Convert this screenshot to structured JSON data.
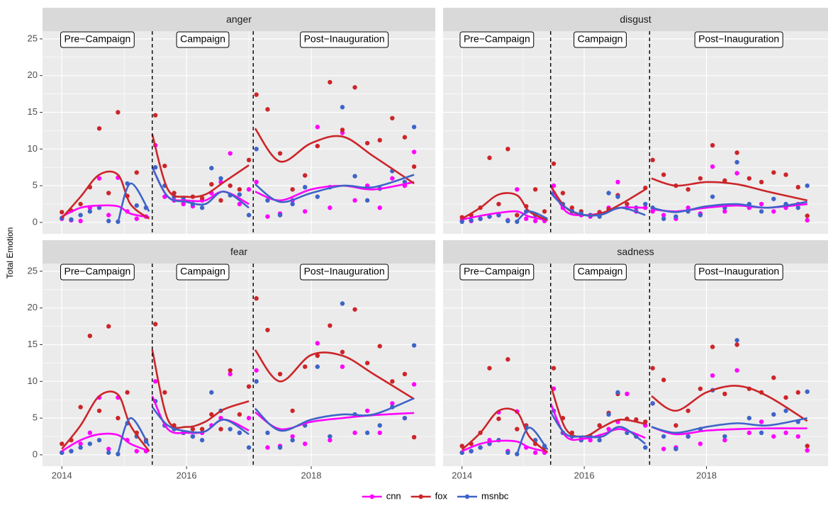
{
  "chart_data": {
    "type": "scatter",
    "y_label": "Total Emotion",
    "xlim": [
      2013.69,
      2019.99
    ],
    "xticks": [
      2014,
      2016,
      2018
    ],
    "ylim": [
      -1.55,
      26.05
    ],
    "yticks": [
      0,
      5,
      10,
      15,
      20,
      25
    ],
    "grid": true,
    "phase_breaks": [
      2015.45,
      2017.07
    ],
    "phases": [
      "Pre−Campaign",
      "Campaign",
      "Post−Inauguration"
    ],
    "series": [
      {
        "name": "cnn",
        "color": "#ff00ff"
      },
      {
        "name": "fox",
        "color": "#cc2529"
      },
      {
        "name": "msnbc",
        "color": "#3d64c8"
      }
    ],
    "x": [
      2014.0,
      2014.15,
      2014.3,
      2014.45,
      2014.6,
      2014.75,
      2014.9,
      2015.05,
      2015.2,
      2015.35,
      2015.5,
      2015.65,
      2015.8,
      2015.95,
      2016.1,
      2016.25,
      2016.4,
      2016.55,
      2016.7,
      2016.85,
      2017.0,
      2017.12,
      2017.3,
      2017.5,
      2017.7,
      2017.9,
      2018.1,
      2018.3,
      2018.5,
      2018.7,
      2018.9,
      2019.1,
      2019.3,
      2019.5,
      2019.65
    ],
    "smooth_x": [
      2014.0,
      2014.3,
      2014.6,
      2014.9,
      2015.1,
      2015.4,
      null,
      2015.45,
      2015.7,
      2016.0,
      2016.3,
      2016.6,
      2017.0,
      null,
      2017.1,
      2017.5,
      2018.0,
      2018.5,
      2019.0,
      2019.65
    ],
    "facets": [
      {
        "title": "anger",
        "series": [
          {
            "values": [
              0.5,
              0.3,
              0.2,
              2,
              6,
              1,
              6.1,
              1.5,
              0.5,
              0.8,
              10.5,
              3.5,
              3,
              2.5,
              2.2,
              3,
              4,
              5.5,
              9.4,
              2.5,
              4.5,
              5.5,
              0.8,
              1.2,
              3,
              1.5,
              13,
              2,
              12.2,
              3,
              5,
              2,
              6,
              5,
              9.6
            ],
            "smooth": [
              0.8,
              2,
              2.3,
              2.2,
              1.2,
              0.7,
              null,
              7.5,
              3.5,
              3,
              3,
              4.2,
              2.5,
              null,
              4.2,
              3,
              4.5,
              5,
              4.5,
              5.5
            ]
          },
          {
            "values": [
              1.4,
              1.6,
              2.5,
              4.8,
              12.8,
              4,
              15,
              3.6,
              6.8,
              2,
              14.6,
              7.7,
              4,
              3,
              3.5,
              3.3,
              5.2,
              3,
              5,
              4.5,
              8.5,
              17.4,
              15.4,
              9.4,
              4.5,
              6.4,
              10.4,
              19.1,
              12.6,
              18.4,
              10.8,
              11.2,
              14.2,
              11.6,
              7.6
            ],
            "smooth": [
              0.6,
              3.5,
              6.5,
              6.5,
              2.5,
              0.5,
              null,
              12,
              4.5,
              3.5,
              3.8,
              5.5,
              7.8,
              null,
              12.8,
              8.3,
              10.8,
              11.7,
              9,
              5.3
            ]
          },
          {
            "values": [
              0.6,
              0.4,
              1,
              1.5,
              2,
              0.2,
              0.1,
              5.3,
              2.3,
              2,
              7.5,
              5,
              3.5,
              3.3,
              2.5,
              2,
              7.4,
              6,
              3.7,
              3.8,
              1,
              10,
              3,
              1,
              2.5,
              4.8,
              3.5,
              4.8,
              15.7,
              6.3,
              3,
              4.6,
              7,
              5.5,
              13
            ],
            "smooth": [
              null,
              null,
              null,
              0,
              5.3,
              1.5,
              null,
              7.5,
              3.5,
              2.8,
              2.5,
              4.2,
              2,
              null,
              5.2,
              2.8,
              4,
              5,
              4.8,
              6.5
            ]
          }
        ]
      },
      {
        "title": "disgust",
        "series": [
          {
            "values": [
              0.3,
              0.2,
              0.5,
              0.8,
              1,
              0.3,
              4.5,
              0.5,
              0.2,
              0.2,
              5,
              2,
              1.5,
              1,
              0.8,
              1.2,
              2,
              5.5,
              2,
              1.5,
              2,
              1.5,
              1,
              0.5,
              2,
              1.2,
              7.6,
              1.5,
              6.7,
              2,
              2.5,
              1.5,
              2,
              2.5,
              0.3
            ],
            "smooth": [
              0.4,
              0.9,
              1.3,
              1.5,
              0.8,
              0.3,
              null,
              5,
              1.5,
              1,
              1.3,
              2,
              2,
              null,
              1.8,
              1.5,
              2,
              2.3,
              2,
              2.5
            ]
          },
          {
            "values": [
              0.7,
              1,
              2,
              8.8,
              2.5,
              10,
              1,
              2.2,
              4.5,
              1.5,
              8,
              4,
              2,
              1.5,
              1,
              1.4,
              1.8,
              3.7,
              2.5,
              2,
              4.7,
              8.5,
              6.5,
              5,
              4.5,
              6,
              10.5,
              5.7,
              9.5,
              6,
              5.5,
              6.8,
              6.5,
              4.8,
              0.9
            ],
            "smooth": [
              0.5,
              2,
              3.8,
              3.7,
              1.5,
              0.3,
              null,
              5,
              2,
              1,
              1.3,
              2.5,
              4.5,
              null,
              6,
              5,
              5.5,
              5.2,
              4.2,
              3
            ]
          },
          {
            "values": [
              0.1,
              0.3,
              0.5,
              0.8,
              1,
              0.2,
              0.1,
              1.5,
              1,
              0.5,
              4,
              2.5,
              1.5,
              1.2,
              1,
              0.8,
              4,
              3.5,
              2,
              2,
              2.5,
              2,
              0.5,
              0.8,
              1.5,
              1,
              3.5,
              2,
              8.2,
              2.5,
              1.5,
              3.2,
              2.5,
              2,
              5
            ],
            "smooth": [
              null,
              null,
              null,
              0.2,
              1.5,
              0.5,
              null,
              4,
              2,
              1,
              1.1,
              2,
              1,
              null,
              2,
              1.4,
              2.2,
              2.5,
              2,
              2.8
            ]
          }
        ]
      },
      {
        "title": "fear",
        "series": [
          {
            "values": [
              0.3,
              0.5,
              1.5,
              3,
              7.8,
              0.8,
              7.8,
              2,
              0.5,
              0.5,
              10,
              4,
              3.5,
              3,
              2.5,
              3,
              4,
              5,
              11,
              3,
              5,
              11.5,
              1,
              1.2,
              2.5,
              1.5,
              15.2,
              2,
              12,
              3,
              6,
              3,
              7,
              5,
              9.6
            ],
            "smooth": [
              0.5,
              2,
              2.8,
              2.7,
              1.5,
              0.5,
              null,
              8,
              3.5,
              3,
              3.2,
              4.8,
              3.3,
              null,
              5.8,
              3.5,
              4.5,
              5,
              5.4,
              5.7
            ]
          },
          {
            "values": [
              1.5,
              2,
              6.5,
              16.2,
              6,
              17.5,
              5,
              8.5,
              3,
              2,
              17.8,
              8.5,
              4,
              3,
              3.5,
              3.5,
              5.5,
              3.5,
              11.5,
              5.5,
              9.3,
              21.3,
              17,
              11,
              6,
              12,
              13.5,
              17.6,
              14,
              19.8,
              12.5,
              14.8,
              10,
              11,
              2.4
            ],
            "smooth": [
              0.8,
              4,
              8,
              8.2,
              4,
              0.5,
              null,
              14.3,
              4.8,
              3.8,
              4.5,
              6.2,
              7.3,
              null,
              14.3,
              10,
              13.6,
              13.5,
              11,
              7.6
            ]
          },
          {
            "values": [
              0.3,
              0.5,
              1,
              1.5,
              2,
              0.3,
              0.1,
              4.3,
              2.5,
              1.8,
              7.3,
              4,
              3.5,
              3,
              2.5,
              2,
              8.5,
              6,
              3.5,
              3,
              1,
              10,
              3,
              1,
              2,
              4,
              12,
              2.5,
              20.6,
              5.5,
              3,
              4,
              6.5,
              5,
              14.9
            ],
            "smooth": [
              null,
              null,
              null,
              0.2,
              5,
              1.2,
              null,
              6.5,
              4,
              3.2,
              3.2,
              4.8,
              2.8,
              null,
              6.3,
              3.3,
              4.8,
              5.5,
              5.5,
              7.7
            ]
          }
        ]
      },
      {
        "title": "sadness",
        "series": [
          {
            "values": [
              0.3,
              0.5,
              1,
              2,
              5.8,
              0.5,
              5.9,
              1,
              0.3,
              0.3,
              9,
              3,
              2.5,
              2.2,
              2,
              2.5,
              3.5,
              4.5,
              8.3,
              2.5,
              4,
              7,
              0.8,
              1,
              2.5,
              1.5,
              10.8,
              2,
              11.5,
              3,
              4.5,
              2.5,
              3,
              2.5,
              0.6
            ],
            "smooth": [
              0.5,
              1.5,
              1.9,
              1.8,
              1,
              0.4,
              null,
              7,
              2.5,
              2.2,
              2.8,
              3.5,
              2.3,
              null,
              3.8,
              2.8,
              3.3,
              3.5,
              3.6,
              3.6
            ]
          },
          {
            "values": [
              1.2,
              1.5,
              3,
              11.8,
              4.9,
              13,
              3.5,
              4,
              1.5,
              1,
              11.8,
              5,
              3,
              2,
              2.5,
              4,
              5.7,
              8.3,
              4.9,
              4.8,
              4.5,
              11.8,
              10.2,
              4,
              6,
              9,
              14.7,
              8.3,
              15,
              9,
              8.5,
              10.5,
              7.8,
              8.5,
              1.2
            ],
            "smooth": [
              0.7,
              3,
              6,
              5.8,
              2.5,
              0.3,
              null,
              9.5,
              3.5,
              2.5,
              3.8,
              4.8,
              4.2,
              null,
              8,
              6,
              8.5,
              9.4,
              8,
              4.6
            ]
          },
          {
            "values": [
              0.3,
              0.5,
              1,
              1.5,
              2,
              0.3,
              0.1,
              3.7,
              2,
              1.2,
              6,
              3,
              2.5,
              2,
              2.5,
              2,
              5.5,
              8.5,
              3,
              2.5,
              1,
              7,
              2.5,
              0.8,
              2.5,
              3.5,
              8.8,
              2.5,
              15.6,
              5,
              3,
              5.5,
              6,
              4.5,
              8.6
            ],
            "smooth": [
              null,
              null,
              null,
              0.1,
              3.7,
              0.7,
              null,
              5.8,
              2.8,
              2.5,
              2.5,
              3.8,
              1.5,
              null,
              3.8,
              3,
              3.8,
              4.3,
              4,
              5
            ]
          }
        ]
      }
    ]
  }
}
